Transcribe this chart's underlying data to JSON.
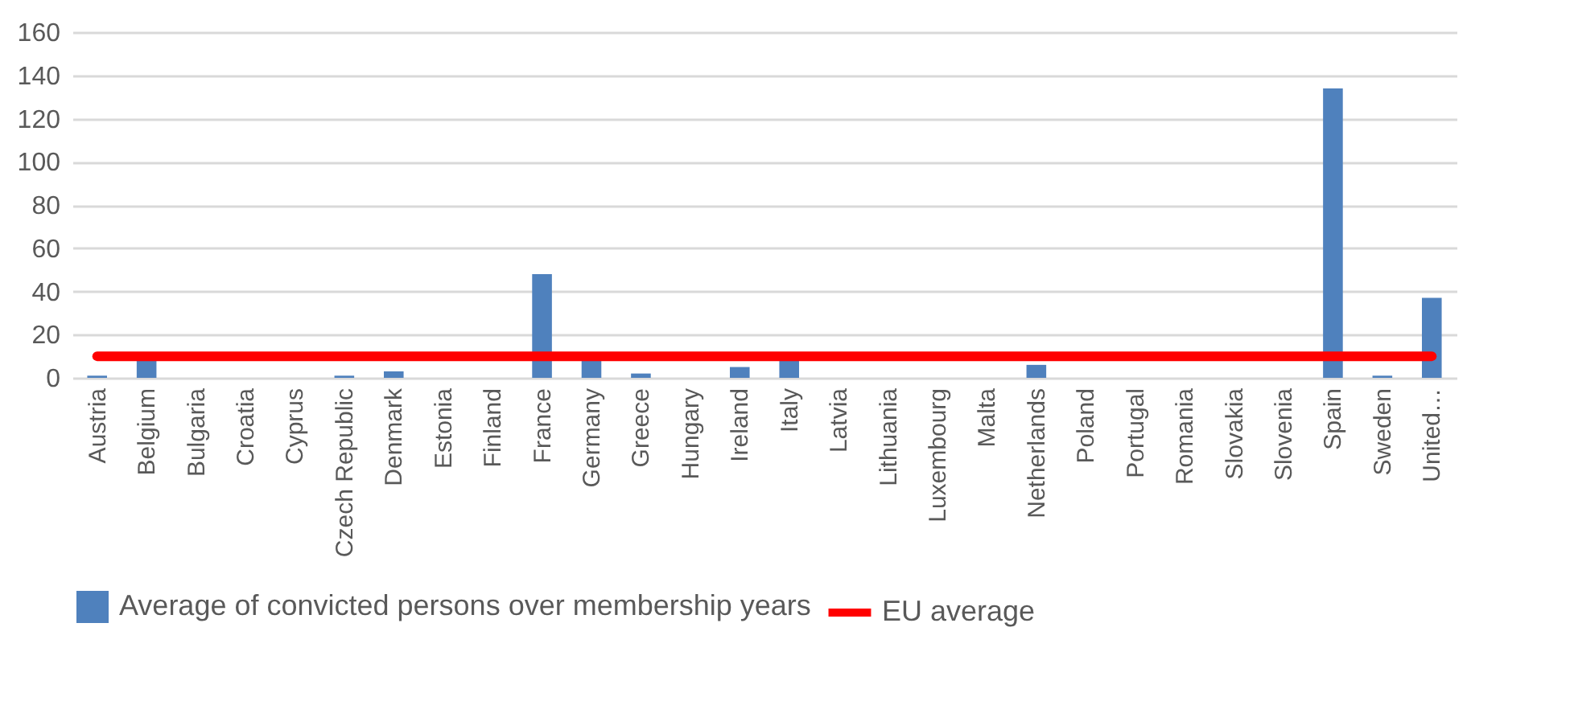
{
  "chart_data": {
    "type": "bar",
    "categories": [
      "Austria",
      "Belgium",
      "Bulgaria",
      "Croatia",
      "Cyprus",
      "Czech Republic",
      "Denmark",
      "Estonia",
      "Finland",
      "France",
      "Germany",
      "Greece",
      "Hungary",
      "Ireland",
      "Italy",
      "Latvia",
      "Lithuania",
      "Luxembourg",
      "Malta",
      "Netherlands",
      "Poland",
      "Portugal",
      "Romania",
      "Slovakia",
      "Slovenia",
      "Spain",
      "Sweden",
      "United…"
    ],
    "series": [
      {
        "name": "Average of convicted persons over membership years",
        "color": "#4f81bd",
        "values": [
          1,
          8,
          0,
          0,
          0,
          1,
          3,
          0,
          0,
          48,
          8,
          2,
          0,
          5,
          8,
          0,
          0,
          0,
          0,
          6,
          0,
          0,
          0,
          0,
          0,
          134,
          1,
          37
        ]
      },
      {
        "name": "EU average",
        "type": "line",
        "color": "#ff0000",
        "values": [
          10,
          10,
          10,
          10,
          10,
          10,
          10,
          10,
          10,
          10,
          10,
          10,
          10,
          10,
          10,
          10,
          10,
          10,
          10,
          10,
          10,
          10,
          10,
          10,
          10,
          10,
          10,
          10
        ]
      }
    ],
    "ylim": [
      0,
      160
    ],
    "yticks": [
      0,
      20,
      40,
      60,
      80,
      100,
      120,
      140,
      160
    ],
    "grid": "y",
    "legend": "bottom"
  }
}
